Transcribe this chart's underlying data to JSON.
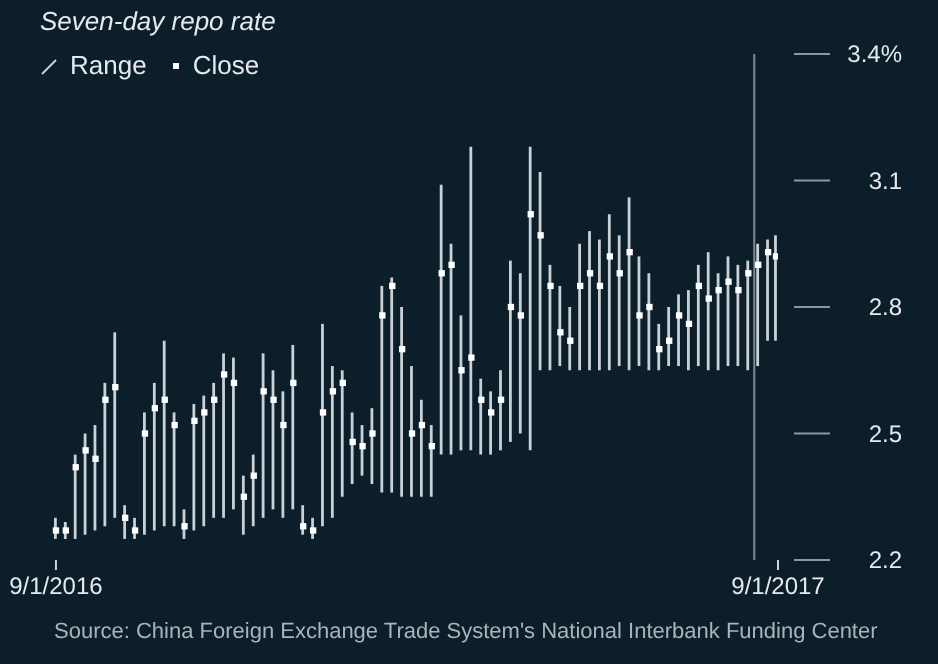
{
  "chart_data": {
    "type": "bar",
    "title": "Seven-day repo rate",
    "x": [
      "2016-09-01",
      "2016-09-06",
      "2016-09-11",
      "2016-09-16",
      "2016-09-21",
      "2016-09-26",
      "2016-10-01",
      "2016-10-06",
      "2016-10-11",
      "2016-10-16",
      "2016-10-21",
      "2016-10-26",
      "2016-10-31",
      "2016-11-05",
      "2016-11-10",
      "2016-11-15",
      "2016-11-20",
      "2016-11-25",
      "2016-11-30",
      "2016-12-05",
      "2016-12-10",
      "2016-12-15",
      "2016-12-20",
      "2016-12-25",
      "2016-12-30",
      "2017-01-04",
      "2017-01-09",
      "2017-01-14",
      "2017-01-19",
      "2017-01-24",
      "2017-01-29",
      "2017-02-03",
      "2017-02-08",
      "2017-02-13",
      "2017-02-18",
      "2017-02-23",
      "2017-02-28",
      "2017-03-05",
      "2017-03-10",
      "2017-03-15",
      "2017-03-20",
      "2017-03-25",
      "2017-03-30",
      "2017-04-04",
      "2017-04-09",
      "2017-04-14",
      "2017-04-19",
      "2017-04-24",
      "2017-04-29",
      "2017-05-04",
      "2017-05-09",
      "2017-05-14",
      "2017-05-19",
      "2017-05-24",
      "2017-05-29",
      "2017-06-03",
      "2017-06-08",
      "2017-06-13",
      "2017-06-18",
      "2017-06-23",
      "2017-06-28",
      "2017-07-03",
      "2017-07-08",
      "2017-07-13",
      "2017-07-18",
      "2017-07-23",
      "2017-07-28",
      "2017-08-02",
      "2017-08-07",
      "2017-08-12",
      "2017-08-17",
      "2017-08-22",
      "2017-08-27",
      "2017-08-31"
    ],
    "series": [
      {
        "name": "Range",
        "color": "#c9d1d6",
        "base": [
          2.25,
          2.25,
          2.25,
          2.26,
          2.27,
          2.28,
          2.3,
          2.25,
          2.25,
          2.26,
          2.27,
          2.28,
          2.28,
          2.25,
          2.27,
          2.28,
          2.3,
          2.3,
          2.32,
          2.26,
          2.28,
          2.3,
          2.32,
          2.3,
          2.32,
          2.26,
          2.25,
          2.28,
          2.3,
          2.35,
          2.38,
          2.4,
          2.38,
          2.36,
          2.36,
          2.35,
          2.35,
          2.35,
          2.35,
          2.45,
          2.45,
          2.46,
          2.46,
          2.45,
          2.45,
          2.46,
          2.48,
          2.5,
          2.46,
          2.65,
          2.65,
          2.66,
          2.65,
          2.65,
          2.65,
          2.65,
          2.65,
          2.66,
          2.65,
          2.66,
          2.65,
          2.65,
          2.66,
          2.66,
          2.65,
          2.66,
          2.65,
          2.65,
          2.66,
          2.66,
          2.65,
          2.66,
          2.72,
          2.72
        ],
        "values": [
          0.05,
          0.04,
          0.2,
          0.24,
          0.25,
          0.34,
          0.44,
          0.08,
          0.05,
          0.29,
          0.35,
          0.44,
          0.27,
          0.07,
          0.3,
          0.31,
          0.32,
          0.39,
          0.36,
          0.14,
          0.17,
          0.39,
          0.33,
          0.3,
          0.39,
          0.07,
          0.05,
          0.48,
          0.36,
          0.3,
          0.17,
          0.12,
          0.18,
          0.49,
          0.51,
          0.45,
          0.31,
          0.23,
          0.17,
          0.64,
          0.5,
          0.32,
          0.72,
          0.18,
          0.15,
          0.19,
          0.43,
          0.38,
          0.72,
          0.47,
          0.25,
          0.19,
          0.15,
          0.3,
          0.33,
          0.31,
          0.37,
          0.31,
          0.41,
          0.26,
          0.23,
          0.11,
          0.14,
          0.17,
          0.19,
          0.24,
          0.28,
          0.23,
          0.26,
          0.24,
          0.26,
          0.29,
          0.24,
          0.25
        ]
      },
      {
        "name": "Close",
        "type": "scatter",
        "color": "#ffffff",
        "marker": "square",
        "values": [
          2.27,
          2.27,
          2.42,
          2.46,
          2.44,
          2.58,
          2.61,
          2.3,
          2.27,
          2.5,
          2.56,
          2.58,
          2.52,
          2.28,
          2.53,
          2.55,
          2.58,
          2.64,
          2.62,
          2.35,
          2.4,
          2.6,
          2.58,
          2.52,
          2.62,
          2.28,
          2.27,
          2.55,
          2.6,
          2.62,
          2.48,
          2.47,
          2.5,
          2.78,
          2.85,
          2.7,
          2.5,
          2.52,
          2.47,
          2.88,
          2.9,
          2.65,
          2.68,
          2.58,
          2.55,
          2.58,
          2.8,
          2.78,
          3.02,
          2.97,
          2.85,
          2.74,
          2.72,
          2.85,
          2.88,
          2.85,
          2.92,
          2.88,
          2.93,
          2.78,
          2.8,
          2.7,
          2.72,
          2.78,
          2.76,
          2.85,
          2.82,
          2.84,
          2.86,
          2.84,
          2.88,
          2.9,
          2.93,
          2.92
        ]
      }
    ],
    "xlim": [
      "2016-08-30",
      "2017-09-01"
    ],
    "xticks": [
      {
        "value": "2016-09-01",
        "label": "9/1/2016"
      },
      {
        "value": "2017-09-01",
        "label": "9/1/2017"
      }
    ],
    "ylim": [
      2.2,
      3.4
    ],
    "yticks": [
      2.2,
      2.5,
      2.8,
      3.1,
      {
        "value": 3.4,
        "label": "3.4%"
      }
    ],
    "legend": "top left",
    "ref_lines": [
      {
        "axis": "x",
        "value": "2017-08-20",
        "color": "#7d8a92"
      }
    ],
    "annotations": [
      "Source: China Foreign Exchange Trade System's National Interbank Funding Center"
    ]
  }
}
